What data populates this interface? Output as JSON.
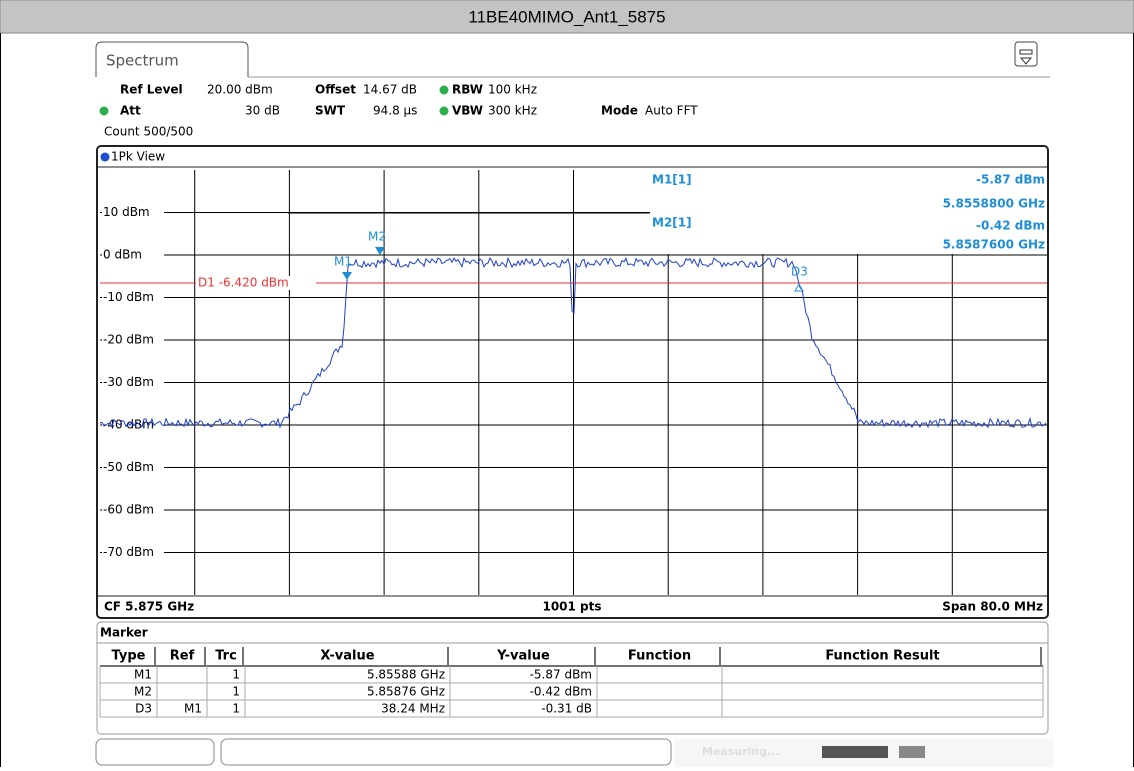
{
  "window_title": "11BE40MIMO_Ant1_5875",
  "tab": "Spectrum",
  "settings": {
    "ref_level_label": "Ref Level",
    "ref_level": "20.00 dBm",
    "offset_label": "Offset",
    "offset": "14.67 dB",
    "rbw_label": "RBW",
    "rbw": "100 kHz",
    "att_label": "Att",
    "att": "30 dB",
    "swt_label": "SWT",
    "swt": "94.8 µs",
    "vbw_label": "VBW",
    "vbw": "300 kHz",
    "mode_label": "Mode",
    "mode": "Auto FFT",
    "count": "Count 500/500"
  },
  "view": "1Pk View",
  "y_labels": [
    "10 dBm",
    "0 dBm",
    "-10 dBm",
    "-20 dBm",
    "-30 dBm",
    "-40 dBm",
    "-50 dBm",
    "-60 dBm",
    "-70 dBm"
  ],
  "display_line": "D1  -6.420 dBm",
  "marker_readout": [
    {
      "name": "M1[1]",
      "level": "-5.87 dBm",
      "freq": "5.8558800 GHz"
    },
    {
      "name": "M2[1]",
      "level": "-0.42 dBm",
      "freq": "5.8587600 GHz"
    }
  ],
  "trace_markers": [
    "M1",
    "M2",
    "D3"
  ],
  "footer": {
    "cf": "CF 5.875 GHz",
    "points": "1001 pts",
    "span": "Span 80.0 MHz"
  },
  "marker_table": {
    "title": "Marker",
    "columns": [
      "Type",
      "Ref",
      "Trc",
      "X-value",
      "Y-value",
      "Function",
      "Function Result"
    ],
    "rows": [
      [
        "M1",
        "",
        "1",
        "5.85588 GHz",
        "-5.87 dBm",
        "",
        ""
      ],
      [
        "M2",
        "",
        "1",
        "5.85876 GHz",
        "-0.42 dBm",
        "",
        ""
      ],
      [
        "D3",
        "M1",
        "1",
        "38.24 MHz",
        "-0.31 dB",
        "",
        ""
      ]
    ]
  },
  "status": "Measuring..."
}
